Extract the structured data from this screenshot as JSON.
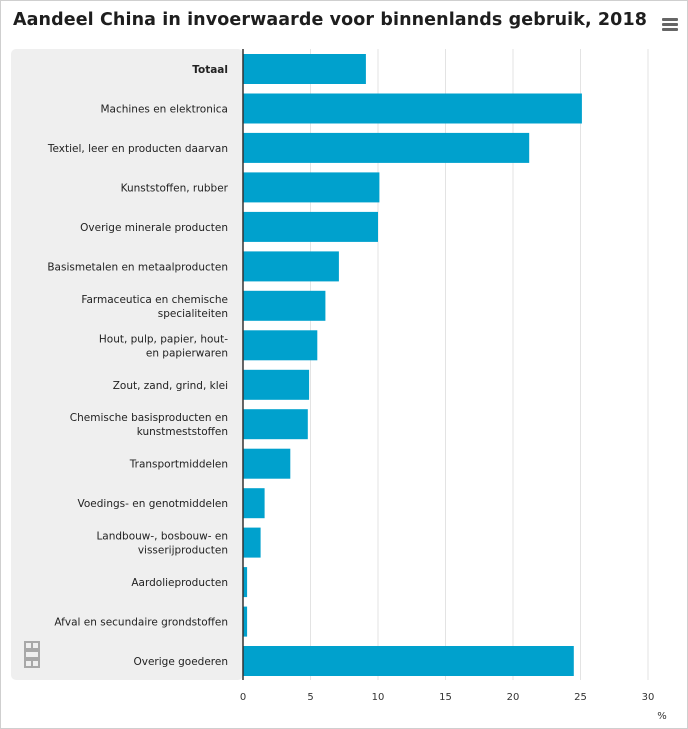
{
  "header": {
    "title": "Aandeel China in invoerwaarde voor binnenlands gebruik, 2018"
  },
  "icons": {
    "menu": "hamburger-menu-icon",
    "logo": "cbs-logo-icon"
  },
  "colors": {
    "bar": "#00a1cd",
    "label_panel": "#efefef",
    "gridline": "#e3e3e3",
    "axis": "#333333"
  },
  "chart_data": {
    "type": "bar",
    "orientation": "horizontal",
    "title": "Aandeel China in invoerwaarde voor binnenlands gebruik, 2018",
    "xlabel": "",
    "unit": "%",
    "xlim": [
      0,
      30
    ],
    "xticks": [
      0,
      5,
      10,
      15,
      20,
      25,
      30
    ],
    "grid": true,
    "categories": [
      "Totaal",
      "Machines en elektronica",
      "Textiel, leer en producten daarvan",
      "Kunststoffen, rubber",
      "Overige minerale producten",
      "Basismetalen en metaalproducten",
      "Farmaceutica en chemische specialiteiten",
      "Hout, pulp, papier, hout- en papierwaren",
      "Zout, zand, grind, klei",
      "Chemische basisproducten en kunstmeststoffen",
      "Transportmiddelen",
      "Voedings- en genotmiddelen",
      "Landbouw-, bosbouw- en visserijproducten",
      "Aardolieproducten",
      "Afval en secundaire grondstoffen",
      "Overige goederen"
    ],
    "label_lines": [
      [
        "Totaal"
      ],
      [
        "Machines en elektronica"
      ],
      [
        "Textiel, leer en producten daarvan"
      ],
      [
        "Kunststoffen, rubber"
      ],
      [
        "Overige minerale producten"
      ],
      [
        "Basismetalen en metaalproducten"
      ],
      [
        "Farmaceutica en chemische",
        "specialiteiten"
      ],
      [
        "Hout, pulp, papier, hout-",
        "en papierwaren"
      ],
      [
        "Zout, zand, grind, klei"
      ],
      [
        "Chemische basisproducten en",
        "kunstmeststoffen"
      ],
      [
        "Transportmiddelen"
      ],
      [
        "Voedings- en genotmiddelen"
      ],
      [
        "Landbouw-, bosbouw- en",
        "visserijproducten"
      ],
      [
        "Aardolieproducten"
      ],
      [
        "Afval en secundaire grondstoffen"
      ],
      [
        "Overige goederen"
      ]
    ],
    "values": [
      9.1,
      25.1,
      21.2,
      10.1,
      10.0,
      7.1,
      6.1,
      5.5,
      4.9,
      4.8,
      3.5,
      1.6,
      1.3,
      0.3,
      0.3,
      24.5
    ],
    "bold_categories": [
      "Totaal"
    ]
  }
}
